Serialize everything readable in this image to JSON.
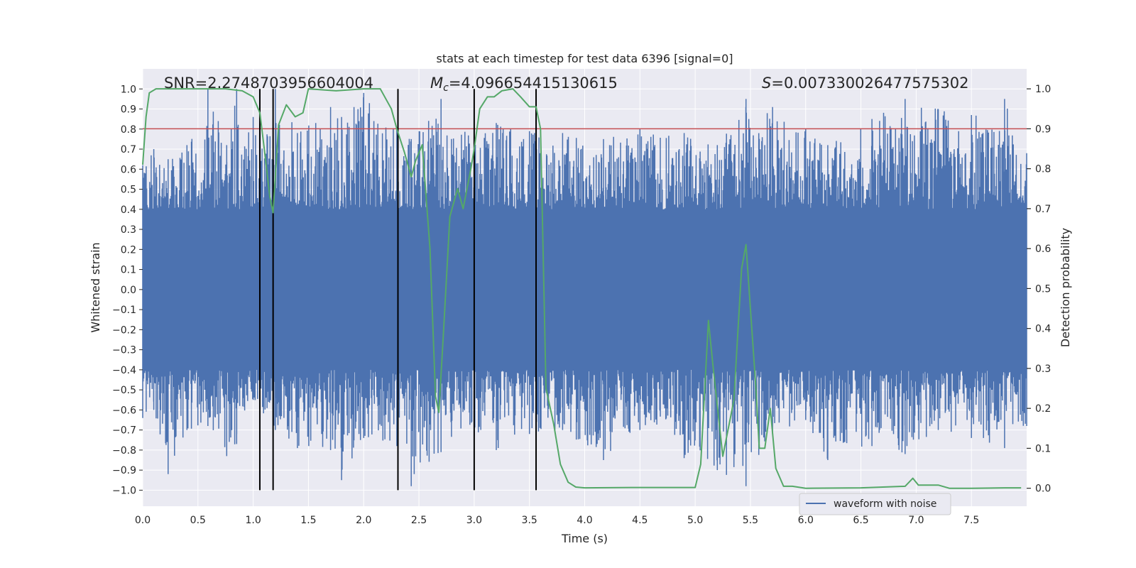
{
  "chart_data": {
    "type": "line",
    "title": "stats at each timestep for test data 6396 [signal=0]",
    "xlabel": "Time (s)",
    "ylabel_left": "Whitened strain",
    "ylabel_right": "Detection probability",
    "xlim": [
      0.0,
      8.0
    ],
    "ylim_left": [
      -1.08,
      1.1
    ],
    "ylim_right": [
      -0.045,
      1.05
    ],
    "x_ticks": [
      0.0,
      0.5,
      1.0,
      1.5,
      2.0,
      2.5,
      3.0,
      3.5,
      4.0,
      4.5,
      5.0,
      5.5,
      6.0,
      6.5,
      7.0,
      7.5
    ],
    "x_tick_labels": [
      "0.0",
      "0.5",
      "1.0",
      "1.5",
      "2.0",
      "2.5",
      "3.0",
      "3.5",
      "4.0",
      "4.5",
      "5.0",
      "5.5",
      "6.0",
      "6.5",
      "7.0",
      "7.5"
    ],
    "y_left_ticks": [
      1.0,
      0.9,
      0.8,
      0.7,
      0.6,
      0.5,
      0.4,
      0.3,
      0.2,
      0.1,
      0.0,
      -0.1,
      -0.2,
      -0.3,
      -0.4,
      -0.5,
      -0.6,
      -0.7,
      -0.8,
      -0.9,
      -1.0
    ],
    "y_left_tick_labels": [
      "1.0",
      "0.9",
      "0.8",
      "0.7",
      "0.6",
      "0.5",
      "0.4",
      "0.3",
      "0.2",
      "0.1",
      "0.0",
      "−0.1",
      "−0.2",
      "−0.3",
      "−0.4",
      "−0.5",
      "−0.6",
      "−0.7",
      "−0.8",
      "−0.9",
      "−1.0"
    ],
    "y_right_ticks": [
      1.0,
      0.9,
      0.8,
      0.7,
      0.6,
      0.5,
      0.4,
      0.3,
      0.2,
      0.1,
      0.0
    ],
    "y_right_tick_labels": [
      "1.0",
      "0.9",
      "0.8",
      "0.7",
      "0.6",
      "0.5",
      "0.4",
      "0.3",
      "0.2",
      "0.1",
      "0.0"
    ],
    "annotations": {
      "snr": "SNR=2.2748703956604004",
      "mc_symbol": "M",
      "mc_subscript": "c",
      "mc_value": "=4.096654415130615",
      "s_symbol": "S",
      "s_value": "=0.007330026477575302"
    },
    "legend": {
      "label": "waveform with noise",
      "location": "lower-right"
    },
    "threshold": {
      "value": 0.9,
      "axis": "right",
      "color": "#c44e52"
    },
    "vertical_lines": {
      "x": [
        1.06,
        1.18,
        2.31,
        3.0,
        3.56
      ],
      "y_range": [
        -1.0,
        1.0
      ],
      "color": "#000000"
    },
    "series": [
      {
        "name": "waveform with noise",
        "axis": "left",
        "color": "#4c72b0",
        "style": "noise-envelope",
        "envelope_core": 0.4,
        "envelope_points": [
          {
            "x": 0.0,
            "upper": 0.62,
            "lower": -0.64
          },
          {
            "x": 0.1,
            "upper": 0.7,
            "lower": -0.6
          },
          {
            "x": 0.23,
            "upper": 0.65,
            "lower": -0.92
          },
          {
            "x": 0.4,
            "upper": 0.72,
            "lower": -0.7
          },
          {
            "x": 0.59,
            "upper": 1.0,
            "lower": -0.68
          },
          {
            "x": 0.76,
            "upper": 0.72,
            "lower": -0.83
          },
          {
            "x": 0.85,
            "upper": 1.0,
            "lower": -0.77
          },
          {
            "x": 1.0,
            "upper": 0.86,
            "lower": -0.55
          },
          {
            "x": 1.2,
            "upper": 1.0,
            "lower": -0.7
          },
          {
            "x": 1.4,
            "upper": 0.78,
            "lower": -0.79
          },
          {
            "x": 1.7,
            "upper": 0.91,
            "lower": -0.8
          },
          {
            "x": 1.8,
            "upper": 0.86,
            "lower": -0.95
          },
          {
            "x": 2.0,
            "upper": 0.98,
            "lower": -0.74
          },
          {
            "x": 2.3,
            "upper": 0.8,
            "lower": -0.78
          },
          {
            "x": 2.43,
            "upper": 0.75,
            "lower": -0.98
          },
          {
            "x": 2.7,
            "upper": 0.95,
            "lower": -0.81
          },
          {
            "x": 3.0,
            "upper": 0.73,
            "lower": -0.73
          },
          {
            "x": 3.2,
            "upper": 0.83,
            "lower": -0.8
          },
          {
            "x": 3.5,
            "upper": 0.79,
            "lower": -0.72
          },
          {
            "x": 3.8,
            "upper": 0.78,
            "lower": -0.7
          },
          {
            "x": 4.17,
            "upper": 0.75,
            "lower": -0.85
          },
          {
            "x": 4.5,
            "upper": 0.8,
            "lower": -0.7
          },
          {
            "x": 4.9,
            "upper": 0.78,
            "lower": -0.84
          },
          {
            "x": 5.2,
            "upper": 0.72,
            "lower": -0.9
          },
          {
            "x": 5.46,
            "upper": 0.95,
            "lower": -0.98
          },
          {
            "x": 5.7,
            "upper": 0.91,
            "lower": -0.72
          },
          {
            "x": 6.0,
            "upper": 0.8,
            "lower": -0.65
          },
          {
            "x": 6.2,
            "upper": 0.72,
            "lower": -0.85
          },
          {
            "x": 6.6,
            "upper": 0.85,
            "lower": -0.78
          },
          {
            "x": 6.9,
            "upper": 0.95,
            "lower": -0.82
          },
          {
            "x": 7.2,
            "upper": 0.9,
            "lower": -0.7
          },
          {
            "x": 7.5,
            "upper": 0.87,
            "lower": -0.74
          },
          {
            "x": 7.8,
            "upper": 0.95,
            "lower": -0.79
          },
          {
            "x": 8.0,
            "upper": 0.68,
            "lower": -0.68
          }
        ]
      },
      {
        "name": "Detection probability",
        "axis": "right",
        "color": "#55a868",
        "x": [
          0.0,
          0.03,
          0.06,
          0.12,
          0.25,
          0.5,
          0.75,
          0.9,
          1.0,
          1.06,
          1.1,
          1.15,
          1.18,
          1.23,
          1.3,
          1.38,
          1.45,
          1.5,
          1.75,
          2.0,
          2.15,
          2.25,
          2.3,
          2.37,
          2.43,
          2.47,
          2.53,
          2.6,
          2.65,
          2.68,
          2.72,
          2.78,
          2.85,
          2.9,
          2.97,
          3.0,
          3.05,
          3.12,
          3.18,
          3.25,
          3.35,
          3.42,
          3.5,
          3.56,
          3.6,
          3.65,
          3.72,
          3.78,
          3.85,
          3.92,
          4.0,
          4.5,
          5.0,
          5.05,
          5.12,
          5.16,
          5.25,
          5.35,
          5.42,
          5.46,
          5.5,
          5.55,
          5.58,
          5.63,
          5.68,
          5.73,
          5.8,
          5.88,
          6.0,
          6.5,
          6.9,
          6.97,
          7.02,
          7.1,
          7.2,
          7.3,
          7.5,
          7.8,
          7.95
        ],
        "y": [
          0.81,
          0.93,
          0.99,
          1.0,
          1.0,
          1.0,
          1.0,
          0.995,
          0.98,
          0.94,
          0.85,
          0.73,
          0.69,
          0.91,
          0.96,
          0.93,
          0.94,
          1.0,
          0.995,
          1.0,
          1.0,
          0.95,
          0.9,
          0.84,
          0.78,
          0.82,
          0.86,
          0.6,
          0.23,
          0.19,
          0.38,
          0.68,
          0.75,
          0.7,
          0.8,
          0.85,
          0.95,
          0.98,
          0.98,
          0.995,
          1.0,
          0.98,
          0.955,
          0.955,
          0.9,
          0.25,
          0.16,
          0.06,
          0.015,
          0.003,
          0.001,
          0.002,
          0.002,
          0.06,
          0.42,
          0.31,
          0.08,
          0.22,
          0.55,
          0.61,
          0.45,
          0.25,
          0.1,
          0.1,
          0.2,
          0.05,
          0.005,
          0.005,
          0.0,
          0.001,
          0.005,
          0.025,
          0.008,
          0.008,
          0.008,
          0.0,
          0.0,
          0.001,
          0.001
        ]
      }
    ]
  }
}
